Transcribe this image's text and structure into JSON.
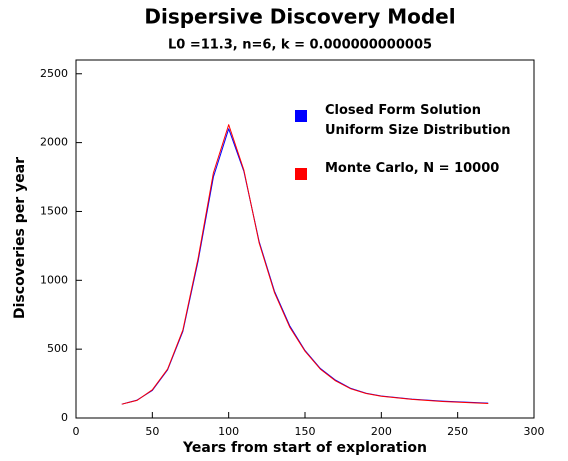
{
  "chart_data": {
    "type": "line",
    "title": "Dispersive Discovery Model",
    "subtitle": "L0 =11.3, n=6, k = 0.000000000005",
    "x_label": "Years from start of exploration",
    "y_label": "Discoveries per year",
    "x": [
      30,
      40,
      50,
      60,
      70,
      80,
      90,
      100,
      110,
      120,
      130,
      140,
      150,
      160,
      170,
      180,
      190,
      200,
      220,
      240,
      270
    ],
    "series": [
      {
        "name": "Closed Form Solution\nUniform Size Distribution",
        "color": "#0000ff",
        "values": [
          100,
          130,
          200,
          350,
          630,
          1140,
          1750,
          2100,
          1790,
          1280,
          920,
          670,
          490,
          360,
          275,
          215,
          180,
          160,
          137,
          123,
          108
        ]
      },
      {
        "name": "Monte Carlo, N = 10000",
        "color": "#ff0000",
        "values": [
          100,
          128,
          205,
          355,
          640,
          1160,
          1780,
          2130,
          1800,
          1270,
          910,
          660,
          485,
          355,
          270,
          212,
          178,
          158,
          135,
          120,
          105
        ]
      }
    ],
    "xlim": [
      0,
      300
    ],
    "xticks": [
      0,
      50,
      100,
      150,
      200,
      250,
      300
    ],
    "ylim": [
      0,
      2600
    ],
    "yticks": [
      0,
      500,
      1000,
      1500,
      2000,
      2500
    ]
  }
}
